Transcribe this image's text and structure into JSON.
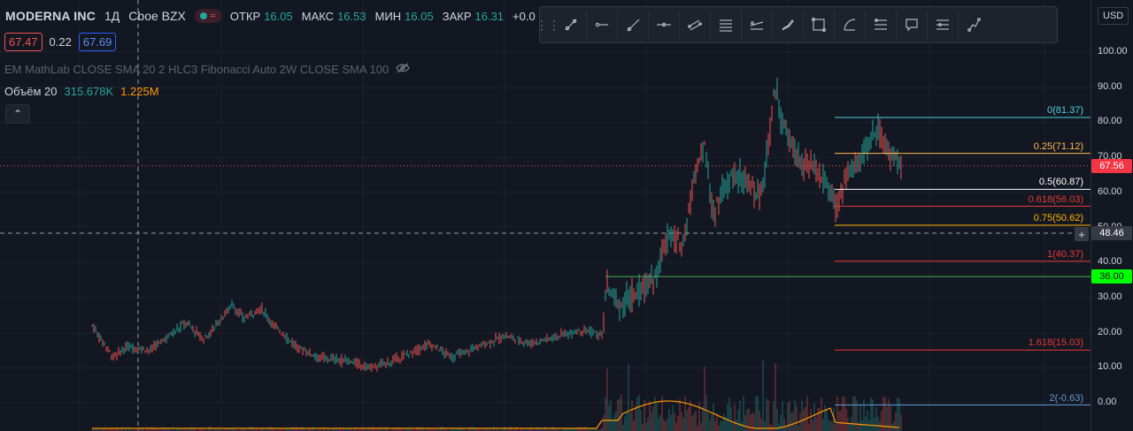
{
  "header": {
    "symbol": "MODERNA INC",
    "timeframe": "1Д",
    "exchange": "Cboe BZX",
    "status_icon": "≈",
    "ohlc": [
      {
        "key": "ОТКР",
        "value": "16.05"
      },
      {
        "key": "МАКС",
        "value": "16.53"
      },
      {
        "key": "МИН",
        "value": "16.05"
      },
      {
        "key": "ЗАКР",
        "value": "16.31"
      },
      {
        "key": "+0.0",
        "value": ""
      }
    ]
  },
  "quote": {
    "bid": "67.47",
    "spread": "0.22",
    "ask": "67.69"
  },
  "indicators": {
    "text": "EM MathLab CLOSE SMA 20 2 HLC3 Fibonacci Auto 2W CLOSE SMA 100",
    "icon": "eye-crossed-icon"
  },
  "volume": {
    "label": "Объём 20",
    "value_a": "315.678K",
    "value_b": "1.225M"
  },
  "currency": "USD",
  "toolbar": {
    "tools": [
      "trend-line-icon",
      "horizontal-ray-icon",
      "ray-icon",
      "horizontal-line-icon",
      "parallel-channel-icon",
      "horizontal-lines-icon",
      "regression-icon",
      "brush-icon",
      "rectangle-icon",
      "arc-icon",
      "fib-levels-icon",
      "comment-icon",
      "pitchfork-icon",
      "path-icon"
    ]
  },
  "price_axis": {
    "ticks": [
      "100.00",
      "90.00",
      "80.00",
      "70.00",
      "60.00",
      "50.00",
      "40.00",
      "30.00",
      "20.00",
      "10.00",
      "0.00"
    ]
  },
  "price_tags": [
    {
      "value": "67.56",
      "color": "#f23645"
    },
    {
      "value": "48.46",
      "color": "#363a45"
    },
    {
      "value": "36.00",
      "color": "#00ff00"
    }
  ],
  "fib_levels": [
    {
      "label": "0(81.37)",
      "color": "#4dd0e1",
      "price": 81.37
    },
    {
      "label": "0.25(71.12)",
      "color": "#ffb74d",
      "price": 71.12
    },
    {
      "label": "0.5(60.87)",
      "color": "#ffffff",
      "price": 60.87
    },
    {
      "label": "0.618(56.03)",
      "color": "#e53935",
      "price": 56.03
    },
    {
      "label": "0.75(50.62)",
      "color": "#ffb300",
      "price": 50.62
    },
    {
      "label": "1(40.37)",
      "color": "#e53935",
      "price": 40.37
    },
    {
      "label": "1.618(15.03)",
      "color": "#e53935",
      "price": 15.03
    },
    {
      "label": "2(-0.63)",
      "color": "#5b9bd5",
      "price": -0.63
    }
  ],
  "horizontal_line": {
    "price": 36.0,
    "color": "#4caf50"
  },
  "colors": {
    "up": "#26a69a",
    "down": "#ef5350",
    "background": "#131722",
    "grid": "#1e222d"
  }
}
